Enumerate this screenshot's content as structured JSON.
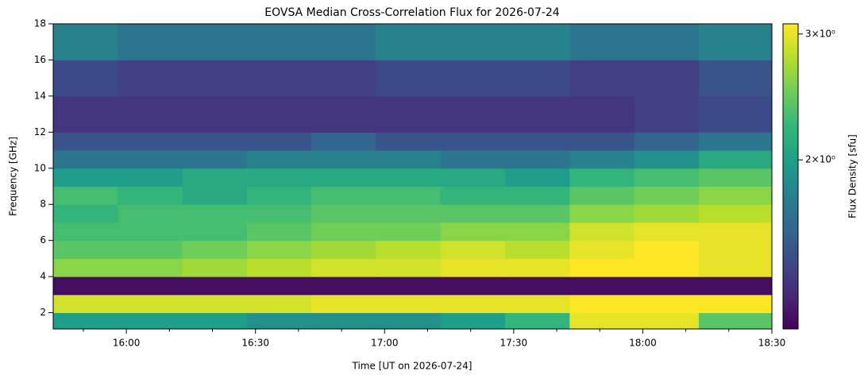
{
  "chart_data": {
    "type": "heatmap",
    "title": "EOVSA Median Cross-Correlation Flux for 2026-07-24",
    "x_label": "Time [UT on 2026-07-24]",
    "y_label": "Frequency [GHz]",
    "colorbar_label": "Flux Density [sfu]",
    "colormap": "viridis",
    "color_scale": "log",
    "clim": [
      1.16,
      3.1
    ],
    "cticks": [
      {
        "value": 3,
        "label": "3×10⁰"
      },
      {
        "value": 2,
        "label": "2×10⁰"
      }
    ],
    "xlim": [
      943,
      1110
    ],
    "xticks": [
      {
        "value": 960,
        "label": "16:00"
      },
      {
        "value": 990,
        "label": "16:30"
      },
      {
        "value": 1020,
        "label": "17:00"
      },
      {
        "value": 1050,
        "label": "17:30"
      },
      {
        "value": 1080,
        "label": "18:00"
      },
      {
        "value": 1110,
        "label": "18:30"
      }
    ],
    "xminorticks": [
      950,
      970,
      980,
      1000,
      1010,
      1030,
      1040,
      1060,
      1070,
      1090,
      1100
    ],
    "ylim": [
      1.1,
      18
    ],
    "yticks": [
      2,
      4,
      6,
      8,
      10,
      12,
      14,
      16,
      18
    ],
    "x_edges": [
      943,
      958,
      973,
      988,
      1003,
      1018,
      1033,
      1048,
      1063,
      1078,
      1093,
      1110
    ],
    "y_edges": [
      1.1,
      2,
      3,
      4,
      5,
      6,
      7,
      8,
      9,
      10,
      11,
      12,
      14,
      16,
      18
    ],
    "z": [
      [
        2.0,
        2.0,
        2.0,
        1.9,
        1.9,
        1.9,
        2.0,
        2.2,
        3.0,
        3.0,
        2.4
      ],
      [
        2.9,
        2.9,
        2.9,
        2.9,
        3.0,
        3.0,
        3.0,
        3.0,
        3.1,
        3.1,
        3.1
      ],
      [
        1.2,
        1.2,
        1.2,
        1.2,
        1.2,
        1.2,
        1.2,
        1.2,
        1.2,
        1.2,
        1.2
      ],
      [
        2.6,
        2.6,
        2.7,
        2.8,
        2.9,
        2.9,
        3.0,
        3.0,
        3.1,
        3.1,
        3.0
      ],
      [
        2.4,
        2.4,
        2.5,
        2.6,
        2.7,
        2.8,
        2.9,
        2.8,
        3.0,
        3.1,
        3.0
      ],
      [
        2.3,
        2.3,
        2.3,
        2.4,
        2.5,
        2.5,
        2.6,
        2.6,
        2.9,
        3.0,
        3.0
      ],
      [
        2.2,
        2.3,
        2.3,
        2.3,
        2.4,
        2.4,
        2.4,
        2.4,
        2.6,
        2.7,
        2.8
      ],
      [
        2.3,
        2.2,
        2.1,
        2.2,
        2.3,
        2.3,
        2.2,
        2.2,
        2.4,
        2.5,
        2.6
      ],
      [
        2.0,
        2.0,
        2.1,
        2.1,
        2.1,
        2.1,
        2.1,
        2.0,
        2.2,
        2.3,
        2.4
      ],
      [
        1.7,
        1.7,
        1.7,
        1.8,
        1.8,
        1.8,
        1.7,
        1.7,
        1.8,
        1.9,
        2.1
      ],
      [
        1.5,
        1.5,
        1.5,
        1.5,
        1.6,
        1.5,
        1.5,
        1.5,
        1.5,
        1.6,
        1.7
      ],
      [
        1.35,
        1.35,
        1.35,
        1.35,
        1.35,
        1.35,
        1.35,
        1.35,
        1.35,
        1.4,
        1.45
      ],
      [
        1.45,
        1.4,
        1.4,
        1.4,
        1.4,
        1.45,
        1.45,
        1.45,
        1.4,
        1.4,
        1.5
      ],
      [
        1.8,
        1.7,
        1.7,
        1.7,
        1.7,
        1.8,
        1.8,
        1.8,
        1.7,
        1.7,
        1.8
      ]
    ]
  }
}
